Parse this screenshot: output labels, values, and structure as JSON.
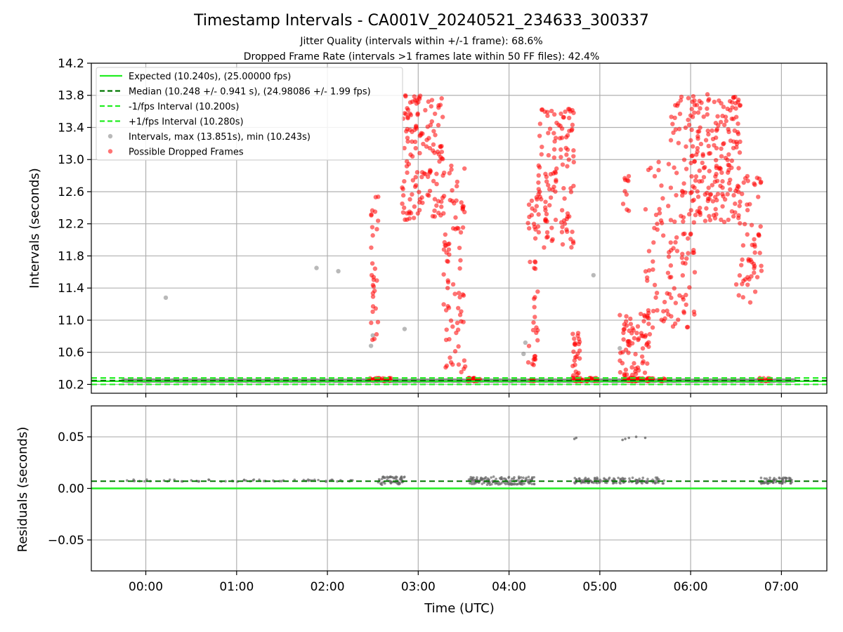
{
  "title": "Timestamp Intervals - CA001V_20240521_234633_300337",
  "subtitle1": "Jitter Quality (intervals within +/-1 frame): 68.6%",
  "subtitle2": "Dropped Frame Rate (intervals >1 frames late within 50 FF files): 42.4%",
  "colors": {
    "expected": "#22ee22",
    "median": "#007700",
    "dropped": "#ff0000",
    "normal": "#808080",
    "residual": "#666666"
  },
  "chart_data": [
    {
      "type": "scatter",
      "name": "intervals",
      "ylabel": "Intervals (seconds)",
      "xlabel": "",
      "ylim": [
        10.09,
        14.2
      ],
      "xlim_hours": [
        -0.6,
        7.5
      ],
      "y_ticks": [
        "10.2",
        "10.6",
        "11.0",
        "11.4",
        "11.8",
        "12.2",
        "12.6",
        "13.0",
        "13.4",
        "13.8",
        "14.2"
      ],
      "grid": "on",
      "legend_placement": "top-left",
      "legend": [
        {
          "label": "Expected (10.240s), (25.00000 fps)",
          "style": "solid",
          "color": "#22ee22"
        },
        {
          "label": "Median (10.248 +/- 0.941 s), (24.98086 +/- 1.99 fps)",
          "style": "dashed",
          "color": "#007700"
        },
        {
          "label": "-1/fps Interval (10.200s)",
          "style": "dashed",
          "color": "#22ee22"
        },
        {
          "label": "+1/fps Interval (10.280s)",
          "style": "dashed",
          "color": "#22ee22"
        },
        {
          "label": "Intervals, max (13.851s), min (10.243s)",
          "style": "marker",
          "color": "#808080"
        },
        {
          "label": "Possible Dropped Frames",
          "style": "marker",
          "color": "#ff0000"
        }
      ],
      "reference_lines": {
        "expected": 10.24,
        "median": 10.248,
        "minus_one_frame": 10.2,
        "plus_one_frame": 10.28
      },
      "baseline_range_hours": [
        -0.25,
        7.15
      ],
      "baseline_value": 10.246,
      "gray_outliers": [
        {
          "x": 0.22,
          "y": 11.28
        },
        {
          "x": 1.88,
          "y": 11.65
        },
        {
          "x": 2.12,
          "y": 11.61
        },
        {
          "x": 2.5,
          "y": 10.81
        },
        {
          "x": 2.48,
          "y": 10.68
        },
        {
          "x": 2.85,
          "y": 10.89
        },
        {
          "x": 4.18,
          "y": 10.72
        },
        {
          "x": 4.16,
          "y": 10.58
        },
        {
          "x": 4.93,
          "y": 11.56
        },
        {
          "x": 5.22,
          "y": 10.65
        }
      ],
      "dropped_clusters": [
        {
          "x0": 2.48,
          "x1": 2.56,
          "ymin": 10.55,
          "ymax": 12.6,
          "n": 30
        },
        {
          "x0": 2.82,
          "x1": 3.28,
          "ymin": 12.25,
          "ymax": 13.8,
          "n": 140
        },
        {
          "x0": 3.28,
          "x1": 3.52,
          "ymin": 10.3,
          "ymax": 12.95,
          "n": 80
        },
        {
          "x0": 4.2,
          "x1": 4.32,
          "ymin": 10.4,
          "ymax": 12.6,
          "n": 40
        },
        {
          "x0": 4.32,
          "x1": 4.72,
          "ymin": 11.9,
          "ymax": 13.65,
          "n": 120
        },
        {
          "x0": 4.7,
          "x1": 4.78,
          "ymin": 10.27,
          "ymax": 10.85,
          "n": 25
        },
        {
          "x0": 5.22,
          "x1": 5.55,
          "ymin": 10.27,
          "ymax": 11.1,
          "n": 70
        },
        {
          "x0": 5.25,
          "x1": 5.35,
          "ymin": 12.3,
          "ymax": 12.95,
          "n": 10
        },
        {
          "x0": 5.5,
          "x1": 5.78,
          "ymin": 10.9,
          "ymax": 13.0,
          "n": 50
        },
        {
          "x0": 5.78,
          "x1": 6.05,
          "ymin": 10.9,
          "ymax": 13.8,
          "n": 90
        },
        {
          "x0": 6.0,
          "x1": 6.55,
          "ymin": 12.2,
          "ymax": 13.85,
          "n": 180
        },
        {
          "x0": 6.5,
          "x1": 6.78,
          "ymin": 11.2,
          "ymax": 12.8,
          "n": 60
        }
      ],
      "dropped_near_baseline": [
        {
          "x0": 2.45,
          "x1": 2.72,
          "n": 30
        },
        {
          "x0": 3.55,
          "x1": 3.68,
          "n": 20
        },
        {
          "x0": 4.22,
          "x1": 4.28,
          "n": 5
        },
        {
          "x0": 4.72,
          "x1": 4.98,
          "n": 40
        },
        {
          "x0": 5.25,
          "x1": 5.6,
          "n": 50
        },
        {
          "x0": 5.65,
          "x1": 5.72,
          "n": 10
        },
        {
          "x0": 6.75,
          "x1": 6.88,
          "n": 20
        }
      ]
    },
    {
      "type": "scatter",
      "name": "residuals",
      "ylabel": "Residuals (seconds)",
      "xlabel": "Time (UTC)",
      "ylim": [
        -0.08,
        0.08
      ],
      "y_ticks": [
        {
          "v": 0.05,
          "label": "0.05"
        },
        {
          "v": 0.0,
          "label": "0.00"
        },
        {
          "v": -0.05,
          "label": "−0.05"
        }
      ],
      "x_ticks": [
        {
          "h": 0,
          "label": "00:00"
        },
        {
          "h": 1,
          "label": "01:00"
        },
        {
          "h": 2,
          "label": "02:00"
        },
        {
          "h": 3,
          "label": "03:00"
        },
        {
          "h": 4,
          "label": "04:00"
        },
        {
          "h": 5,
          "label": "05:00"
        },
        {
          "h": 6,
          "label": "06:00"
        },
        {
          "h": 7,
          "label": "07:00"
        }
      ],
      "grid": "on",
      "reference_lines": {
        "zero": 0.0,
        "median": 0.007
      },
      "segments": [
        {
          "x0": -0.22,
          "x1": 2.3,
          "center": 0.0075,
          "spread": 0.001,
          "n": 60
        },
        {
          "x0": 2.55,
          "x1": 2.85,
          "center": 0.0075,
          "spread": 0.004,
          "n": 60
        },
        {
          "x0": 3.55,
          "x1": 4.28,
          "center": 0.0075,
          "spread": 0.004,
          "n": 140
        },
        {
          "x0": 4.72,
          "x1": 5.28,
          "center": 0.0075,
          "spread": 0.003,
          "n": 90
        },
        {
          "x0": 5.32,
          "x1": 5.72,
          "center": 0.0075,
          "spread": 0.003,
          "n": 50
        },
        {
          "x0": 6.75,
          "x1": 7.12,
          "center": 0.0075,
          "spread": 0.003,
          "n": 70
        }
      ],
      "outliers": [
        {
          "x": 4.72,
          "y": 0.048
        },
        {
          "x": 4.74,
          "y": 0.049
        },
        {
          "x": 5.25,
          "y": 0.047
        },
        {
          "x": 5.28,
          "y": 0.048
        },
        {
          "x": 5.32,
          "y": 0.049
        },
        {
          "x": 5.4,
          "y": 0.05
        },
        {
          "x": 5.5,
          "y": 0.049
        }
      ]
    }
  ]
}
